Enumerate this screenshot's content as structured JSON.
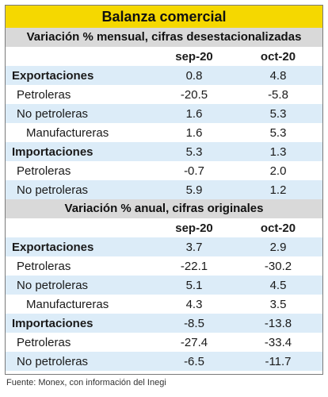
{
  "title": "Balanza comercial",
  "sections": [
    {
      "subtitle": "Variación % mensual, cifras desestacionalizadas",
      "columns": [
        "sep-20",
        "oct-20"
      ],
      "rows": [
        {
          "label": "Exportaciones",
          "v1": "0.8",
          "v2": "4.8"
        },
        {
          "label": "Petroleras",
          "v1": "-20.5",
          "v2": "-5.8"
        },
        {
          "label": "No petroleras",
          "v1": "1.6",
          "v2": "5.3"
        },
        {
          "label": "Manufactureras",
          "v1": "1.6",
          "v2": "5.3"
        },
        {
          "label": "Importaciones",
          "v1": "5.3",
          "v2": "1.3"
        },
        {
          "label": "Petroleras",
          "v1": "-0.7",
          "v2": "2.0"
        },
        {
          "label": "No petroleras",
          "v1": "5.9",
          "v2": "1.2"
        }
      ]
    },
    {
      "subtitle": "Variación % anual, cifras originales",
      "columns": [
        "sep-20",
        "oct-20"
      ],
      "rows": [
        {
          "label": "Exportaciones",
          "v1": "3.7",
          "v2": "2.9"
        },
        {
          "label": "Petroleras",
          "v1": "-22.1",
          "v2": "-30.2"
        },
        {
          "label": "No petroleras",
          "v1": "5.1",
          "v2": "4.5"
        },
        {
          "label": "Manufactureras",
          "v1": "4.3",
          "v2": "3.5"
        },
        {
          "label": "Importaciones",
          "v1": "-8.5",
          "v2": "-13.8"
        },
        {
          "label": "Petroleras",
          "v1": "-27.4",
          "v2": "-33.4"
        },
        {
          "label": "No petroleras",
          "v1": "-6.5",
          "v2": "-11.7"
        }
      ]
    }
  ],
  "source": "Fuente: Monex, con información del Inegi",
  "colors": {
    "title_bg": "#f5d800",
    "subhead_bg": "#d9d9d9",
    "stripe": "#dcecf8"
  }
}
